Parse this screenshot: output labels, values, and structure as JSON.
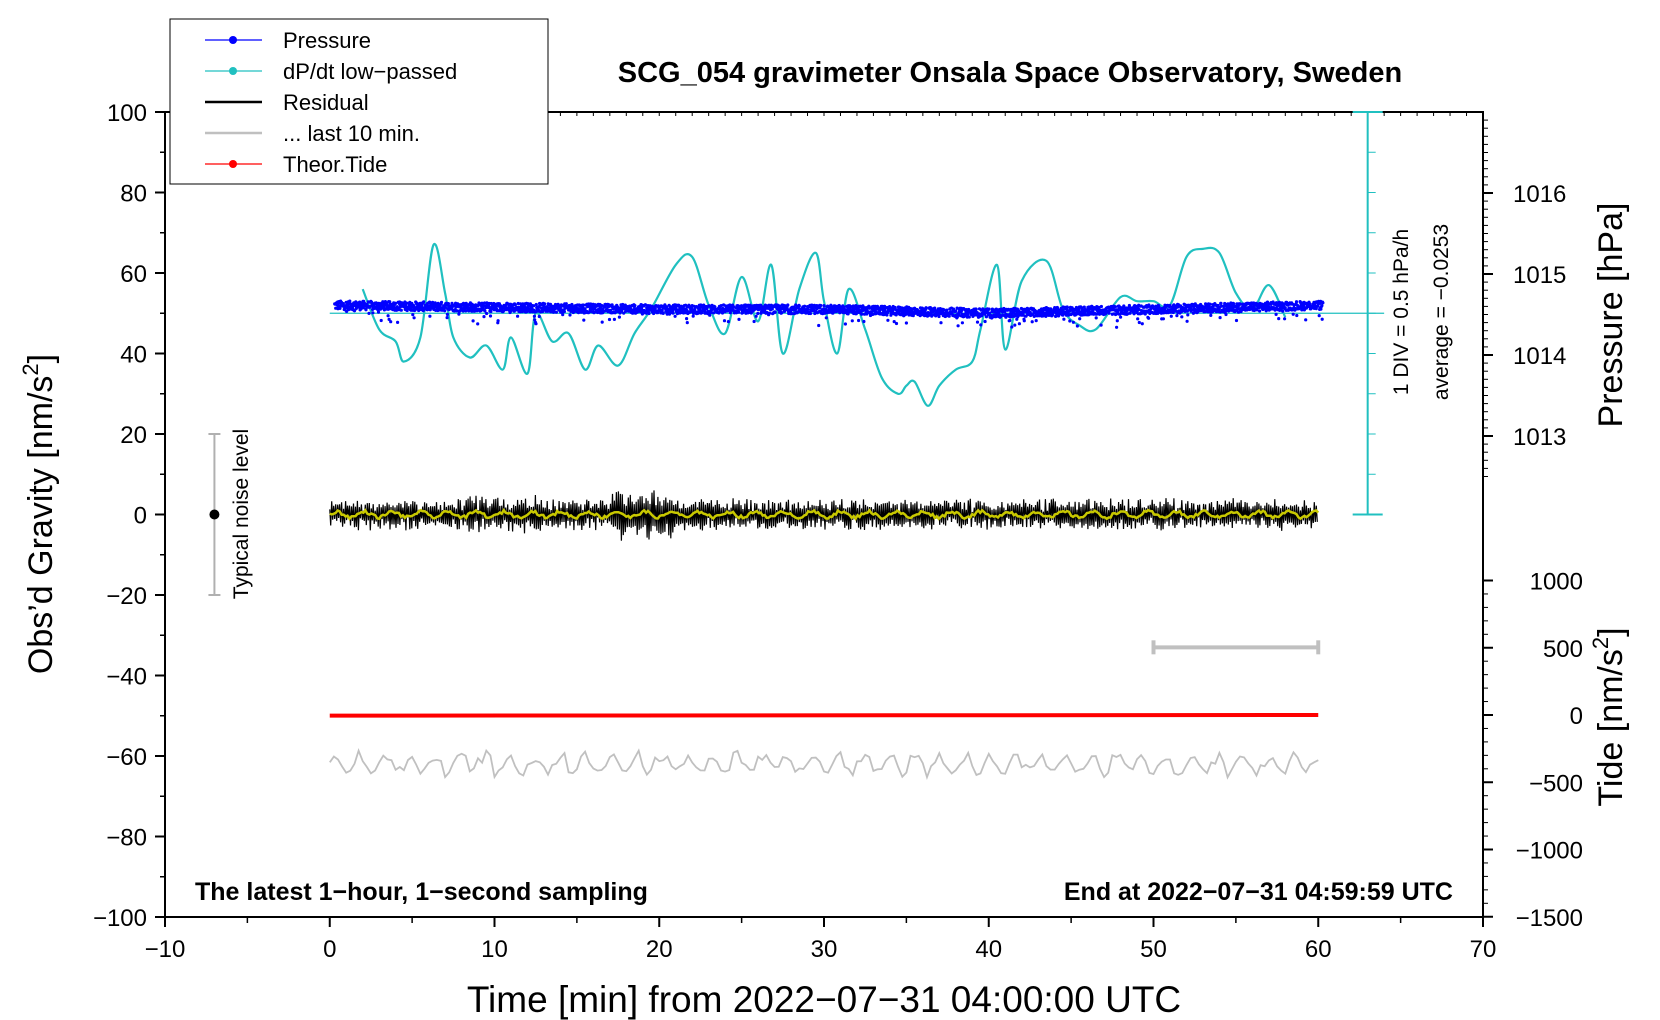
{
  "chart_data": {
    "type": "line",
    "title": "SCG_054 gravimeter Onsala Space Observatory, Sweden",
    "xlabel": "Time [min] from 2022−07−31 04:00:00 UTC",
    "ylabel_left": "Obs’d Gravity [nm/s",
    "ylabel_left_sup": "2",
    "ylabel_left_end": "]",
    "ylabel_pressure": "Pressure [hPa]",
    "ylabel_tide": "Tide [nm/s",
    "ylabel_tide_sup": "2",
    "ylabel_tide_end": "]",
    "xlim": [
      -10,
      70
    ],
    "ylim": [
      -100,
      100
    ],
    "x_ticks": [
      -10,
      0,
      10,
      20,
      30,
      40,
      50,
      60,
      70
    ],
    "x_tick_labels": [
      "−10",
      "0",
      "10",
      "20",
      "30",
      "40",
      "50",
      "60",
      "70"
    ],
    "y_ticks": [
      -100,
      -80,
      -60,
      -40,
      -20,
      0,
      20,
      40,
      60,
      80,
      100
    ],
    "y_tick_labels": [
      "−100",
      "−80",
      "−60",
      "−40",
      "−20",
      "0",
      "20",
      "40",
      "60",
      "80",
      "100"
    ],
    "pressure_ticks": [
      1013,
      1014,
      1015,
      1016
    ],
    "pressure_tick_labels": [
      "1013",
      "1014",
      "1015",
      "1016"
    ],
    "tide_ticks": [
      -1500,
      -1000,
      -500,
      0,
      500,
      1000
    ],
    "tide_tick_labels": [
      "−1500",
      "−1000",
      "−500",
      "0",
      "500",
      "1000"
    ],
    "legend": [
      {
        "label": "Pressure",
        "color": "#0000ff",
        "marker": "dot"
      },
      {
        "label": "dP/dt low−passed",
        "color": "#20c0c0",
        "marker": "dot"
      },
      {
        "label": "Residual",
        "color": "#000000",
        "marker": "line"
      },
      {
        "label": "... last 10 min.",
        "color": "#c0c0c0",
        "marker": "line"
      },
      {
        "label": "Theor.Tide",
        "color": "#ff0000",
        "marker": "dot"
      }
    ],
    "dpdt_scale_label": "1 DIV = 0.5 hPa/h",
    "dpdt_average_label": "average = −0.0253",
    "noise_label": "Typical noise level",
    "noise_bar": {
      "x": -7,
      "center": 0,
      "low": -20,
      "high": 20
    },
    "last10_bar": {
      "x_start": 50,
      "x_end": 60,
      "y": -33
    },
    "annotation_left": "The latest 1−hour, 1−second sampling",
    "annotation_right": "End at 2022−07−31 04:59:59 UTC",
    "series": [
      {
        "name": "Pressure",
        "axis": "left",
        "mean": 51,
        "x_range": [
          0.3,
          60.3
        ],
        "x_knots": [
          0,
          10,
          20,
          30,
          40,
          50,
          60
        ],
        "y_knots": [
          52,
          51.5,
          51,
          51,
          50,
          51,
          52
        ]
      },
      {
        "name": "dP/dt low-passed",
        "axis": "left",
        "x": [
          2,
          3,
          4,
          4.5,
          5.5,
          6.3,
          7,
          7.5,
          8.5,
          9.5,
          10.5,
          11,
          12,
          12.5,
          13.5,
          14.5,
          15.5,
          16.3,
          17.5,
          18.5,
          19.5,
          21,
          22,
          23,
          24,
          25,
          26,
          26.8,
          27.5,
          28.5,
          29.5,
          30,
          30.8,
          31.5,
          32.5,
          33.5,
          34.5,
          35,
          35.5,
          36.3,
          37,
          38,
          39,
          39.5,
          40.5,
          41,
          42,
          43.5,
          44.5,
          45.5,
          46.5,
          48,
          49,
          50,
          51,
          52,
          53,
          54,
          55,
          56,
          57,
          58
        ],
        "y": [
          56,
          46,
          43,
          38,
          44,
          67,
          55,
          44,
          39,
          42,
          36,
          44,
          35,
          50,
          43,
          45,
          36,
          42,
          37,
          45,
          51,
          62,
          64,
          52,
          45,
          59,
          48,
          62,
          40,
          56,
          65,
          53,
          40,
          56,
          46,
          34,
          30,
          32,
          33,
          27,
          32,
          36,
          38,
          46,
          62,
          41,
          58,
          63,
          51,
          47,
          46,
          54,
          53,
          53,
          52,
          64,
          66,
          65,
          55,
          51,
          57,
          49
        ]
      },
      {
        "name": "Residual",
        "axis": "left",
        "mean": 0,
        "amplitude": 5
      },
      {
        "name": "Residual smoothed",
        "axis": "left",
        "color": "#c8c800",
        "mean": 0,
        "amplitude": 1
      },
      {
        "name": "... last 10 min.",
        "axis": "left",
        "mean": -62,
        "amplitude": 4
      },
      {
        "name": "Theor.Tide",
        "axis": "tide",
        "x": [
          0,
          60
        ],
        "y": [
          -5,
          0
        ]
      }
    ]
  }
}
